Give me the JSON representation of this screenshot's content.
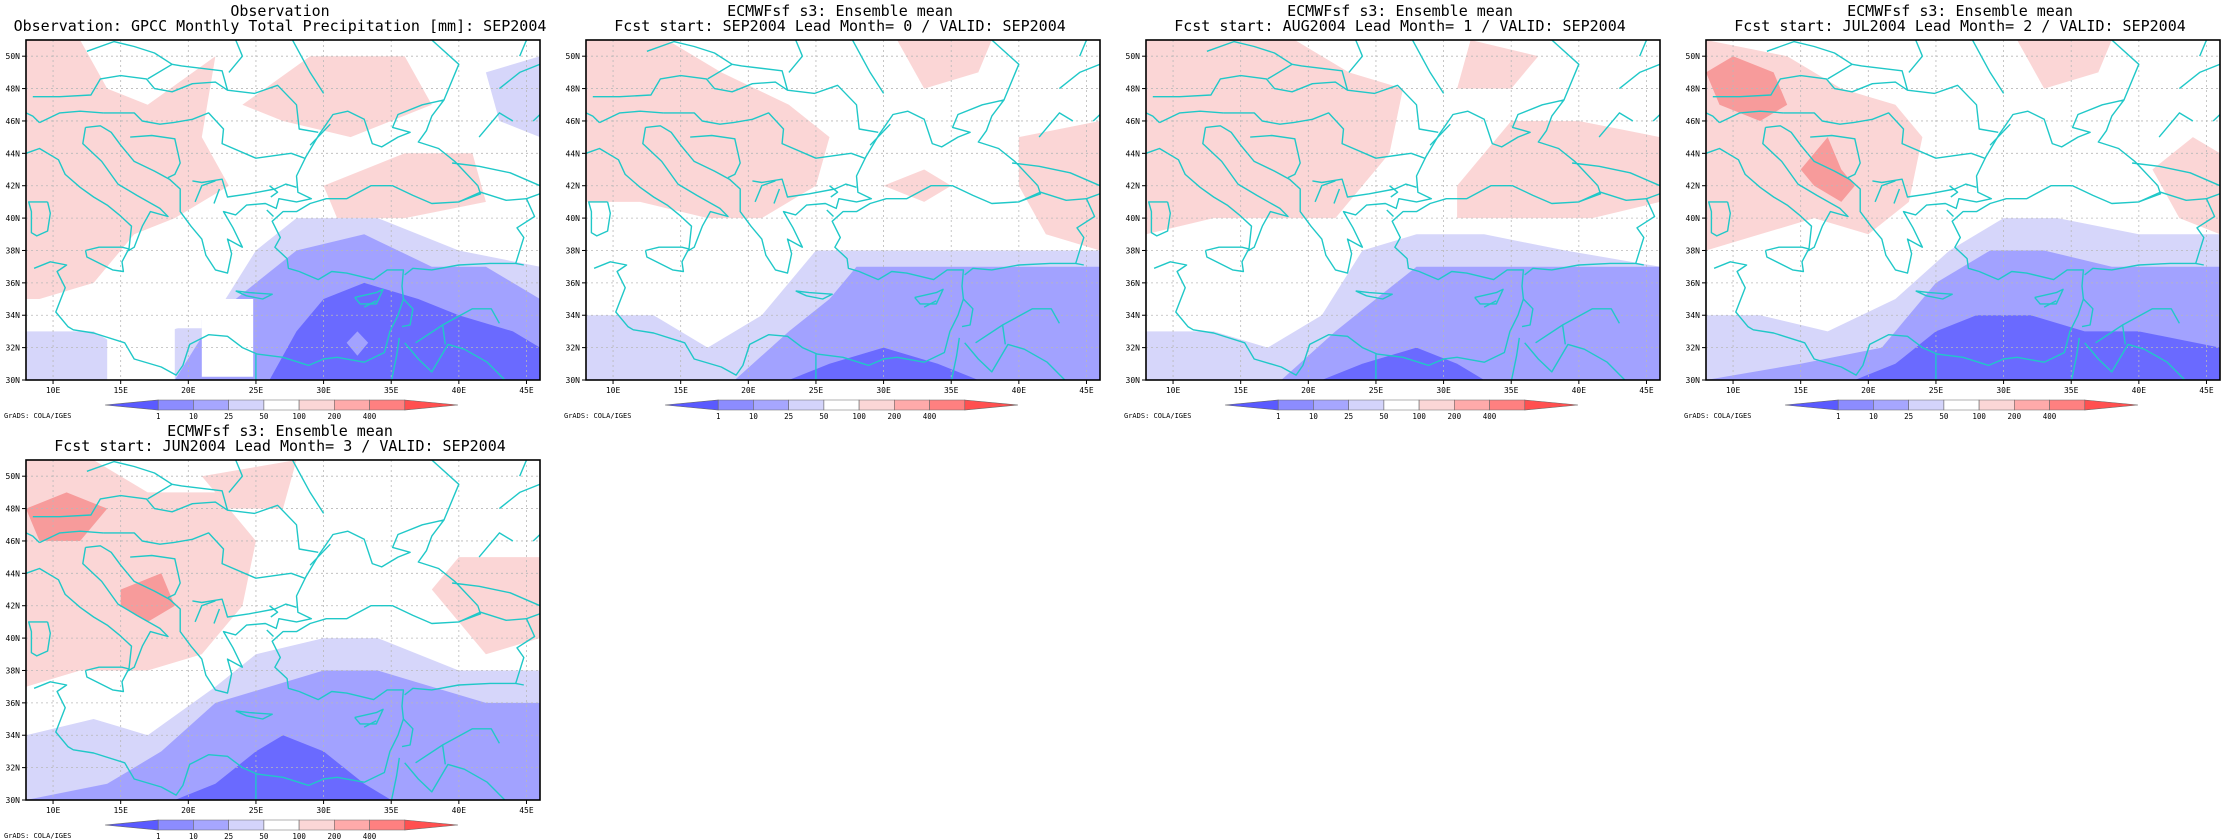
{
  "panels": [
    {
      "title1": "Observation",
      "title2": "Observation: GPCC Monthly Total Precipitation [mm]: SEP2004",
      "variant": "obs"
    },
    {
      "title1": "ECMWFsf s3: Ensemble mean",
      "title2": "Fcst start: SEP2004  Lead Month= 0 / VALID: SEP2004",
      "variant": "lead0"
    },
    {
      "title1": "ECMWFsf s3: Ensemble mean",
      "title2": "Fcst start: AUG2004  Lead Month= 1 / VALID: SEP2004",
      "variant": "lead1"
    },
    {
      "title1": "ECMWFsf s3: Ensemble mean",
      "title2": "Fcst start: JUL2004  Lead Month= 2 / VALID: SEP2004",
      "variant": "lead2"
    },
    {
      "title1": "ECMWFsf s3: Ensemble mean",
      "title2": "Fcst start: JUN2004  Lead Month= 3 / VALID: SEP2004",
      "variant": "lead3"
    }
  ],
  "map": {
    "lon_range": [
      8,
      46
    ],
    "lat_range": [
      30,
      51
    ],
    "lon_ticks": [
      "10E",
      "15E",
      "20E",
      "25E",
      "30E",
      "35E",
      "40E",
      "45E"
    ],
    "lat_ticks": [
      "30N",
      "32N",
      "34N",
      "36N",
      "38N",
      "40N",
      "42N",
      "44N",
      "46N",
      "48N",
      "50N"
    ],
    "coastline_color": "#20c8c8",
    "grid": "dotted"
  },
  "legend": {
    "labels": [
      "1",
      "10",
      "25",
      "50",
      "100",
      "200",
      "400"
    ],
    "colors": [
      "#5a5aff",
      "#8c8cff",
      "#a6a6ff",
      "#d4d4fb",
      "#ffffff",
      "#fbd6d6",
      "#ffaaaa",
      "#ff8080",
      "#ff5050"
    ]
  },
  "credit": "GrADS: COLA/IGES",
  "colors": {
    "dark_blue": "#6a6aff",
    "mid_blue": "#a2a2ff",
    "light_blue": "#d6d6fa",
    "light_red": "#fbd6d6",
    "red": "#f79b9b"
  }
}
